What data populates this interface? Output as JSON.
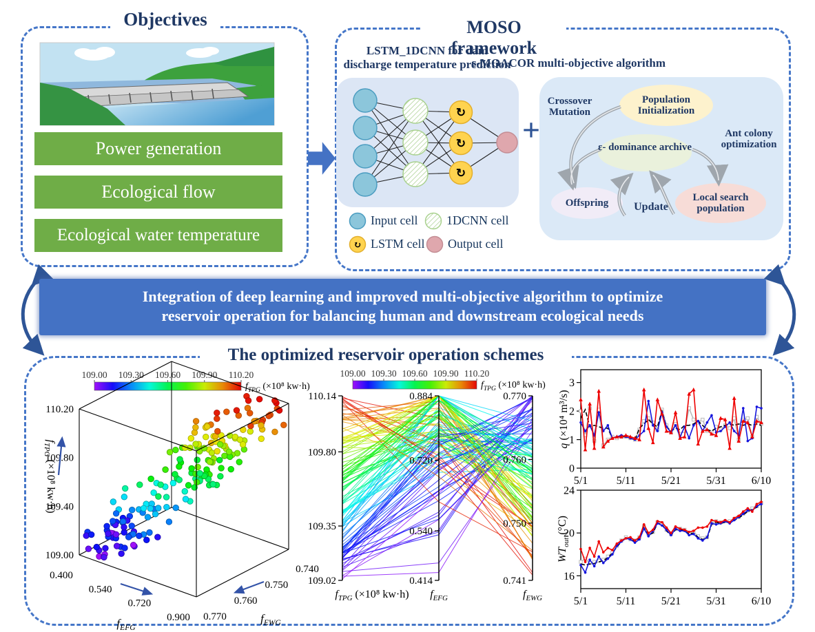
{
  "panels": {
    "objectives": {
      "title": "Objectives",
      "items": [
        "Power generation",
        "Ecological flow",
        "Ecological water temperature"
      ]
    },
    "moso": {
      "title": "MOSO framework",
      "nn": {
        "title_line1": "LSTM_1DCNN for dam",
        "title_line2": "discharge temperature prediction",
        "legend": [
          {
            "icon": "input-cell-icon",
            "label": "Input cell"
          },
          {
            "icon": "cnn-cell-icon",
            "label": "1DCNN cell"
          },
          {
            "icon": "lstm-cell-icon",
            "label": "LSTM cell"
          },
          {
            "icon": "output-cell-icon",
            "label": "Output cell"
          }
        ]
      },
      "plus": "+",
      "alg": {
        "title": "ε-MOACOR multi-objective algorithm",
        "nodes": {
          "pop_init": "Population Initialization",
          "archive": "ε- dominance archive",
          "offspring": "Offspring",
          "local_search": "Local search population"
        },
        "labels": {
          "crossover_l1": "Crossover",
          "crossover_l2": "Mutation",
          "ant_l1": "Ant colony",
          "ant_l2": "optimization",
          "update": "Update"
        }
      }
    },
    "banner": {
      "line1": "Integration of deep learning and improved multi-objective algorithm to optimize",
      "line2": "reservoir operation for balancing human and downstream ecological needs"
    },
    "results": {
      "title": "The optimized reservoir operation schemes"
    }
  },
  "colors": {
    "accent_blue": "#4472c4",
    "navy_text": "#1f3864",
    "green_bar": "#6fad47",
    "panel_blue": "#dce6f5"
  },
  "chart_data": [
    {
      "id": "pareto3d",
      "type": "scatter3d",
      "colorbar": {
        "ticks": [
          "109.00",
          "109.30",
          "109.60",
          "109.90",
          "110.20"
        ],
        "label": {
          "base": "f",
          "sub": "TPG",
          "rest": " (×10⁸ kw·h)"
        }
      },
      "z_axis": {
        "label": {
          "base": "f",
          "sub": "TPG",
          "rest": " (×10⁸ kw·h)"
        },
        "ticks": [
          "110.20",
          "109.80",
          "109.40",
          "109.00"
        ],
        "range": [
          109.0,
          110.2
        ]
      },
      "x_axis": {
        "label": {
          "base": "f",
          "sub": "EFG",
          "rest": ""
        },
        "ticks": [
          "0.400",
          "0.540",
          "0.720",
          "0.900"
        ],
        "range": [
          0.4,
          0.9
        ]
      },
      "y_axis": {
        "label": {
          "base": "f",
          "sub": "EWG",
          "rest": ""
        },
        "ticks": [
          "0.770",
          "0.760",
          "0.750",
          "0.740"
        ],
        "range": [
          0.77,
          0.74
        ]
      },
      "n_points": 195,
      "distribution": "Pareto cloud rising from low fTPG (purple, low fEFG/fEWG corner) to high fTPG (red), rainbow-colored by fTPG"
    },
    {
      "id": "parallel-coords",
      "type": "parallel",
      "colorbar": {
        "ticks": [
          "109.00",
          "109.30",
          "109.60",
          "109.90",
          "110.20"
        ],
        "label": {
          "base": "f",
          "sub": "TPG",
          "rest": " (×10⁸ kw·h)"
        }
      },
      "axes": [
        {
          "label": {
            "base": "f",
            "sub": "TPG",
            "rest": " (×10⁸ kw·h)"
          },
          "ticks": [
            "110.14",
            "109.80",
            "109.35",
            "109.02"
          ]
        },
        {
          "label": {
            "base": "f",
            "sub": "EFG",
            "rest": ""
          },
          "ticks": [
            "0.884",
            "0.720",
            "0.540",
            "0.414"
          ]
        },
        {
          "label": {
            "base": "f",
            "sub": "EWG",
            "rest": ""
          },
          "ticks": [
            "0.770",
            "0.760",
            "0.750",
            "0.741"
          ]
        }
      ],
      "n_lines": 120,
      "distribution": "lines rainbow-colored by fTPG; fEWG inversely related to fTPG so lines converge/cross toward right axis"
    },
    {
      "id": "discharge",
      "type": "line",
      "ylabel": {
        "base": "q",
        "sub": "",
        "rest": " (×10⁴ m³/s)"
      },
      "yticks": [
        0,
        1,
        2,
        3
      ],
      "ylim": [
        0,
        3.45
      ],
      "xticks": [
        "5/1",
        "5/11",
        "5/21",
        "5/31",
        "6/10"
      ],
      "series": [
        {
          "name": "gray",
          "color": "#b9b9b9",
          "marker": "square",
          "dash": false,
          "values": [
            2.0,
            1.15,
            2.1,
            0.95,
            2.05,
            0.8,
            1.0,
            1.1,
            1.05,
            1.1,
            1.1,
            1.05,
            1.0,
            1.35,
            1.65,
            1.75,
            1.6,
            1.35,
            2.05,
            1.5,
            1.25,
            1.55,
            1.2,
            1.3,
            2.1,
            1.7,
            1.6,
            1.7,
            1.3,
            1.25,
            1.45,
            1.35,
            1.5,
            1.4,
            1.75,
            1.0,
            1.7,
            1.75,
            1.1,
            1.8,
            1.55
          ]
        },
        {
          "name": "black-dashed",
          "color": "#000000",
          "marker": null,
          "dash": true,
          "values": [
            1.75,
            2.05,
            1.45,
            1.5,
            1.45,
            1.4,
            1.4,
            1.05,
            1.1,
            1.1,
            1.1,
            1.05,
            1.0,
            1.4,
            1.55,
            1.7,
            1.55,
            1.45,
            2.0,
            1.45,
            1.3,
            1.4,
            1.35,
            1.5,
            1.5,
            1.55,
            1.65,
            1.5,
            1.35,
            1.3,
            1.4,
            1.45,
            1.5,
            1.55,
            1.5,
            1.55,
            1.5,
            1.55,
            1.5,
            1.55,
            1.5
          ]
        },
        {
          "name": "blue",
          "color": "#1515dd",
          "marker": "dot",
          "dash": false,
          "values": [
            1.6,
            1.3,
            1.5,
            1.15,
            1.95,
            1.3,
            1.5,
            1.05,
            1.1,
            1.15,
            1.1,
            1.05,
            1.0,
            1.15,
            1.3,
            2.35,
            1.5,
            1.3,
            1.95,
            1.45,
            1.25,
            1.5,
            1.1,
            1.45,
            1.05,
            1.5,
            1.65,
            1.3,
            1.6,
            1.85,
            1.25,
            1.3,
            1.45,
            1.6,
            1.3,
            1.15,
            2.1,
            0.95,
            1.05,
            2.15,
            2.1
          ]
        },
        {
          "name": "red",
          "color": "#ee0000",
          "marker": "triangle",
          "dash": false,
          "values": [
            2.4,
            0.65,
            2.25,
            0.7,
            2.7,
            0.75,
            0.95,
            1.05,
            1.1,
            1.1,
            1.15,
            1.1,
            1.05,
            1.0,
            2.75,
            1.4,
            0.9,
            2.4,
            1.9,
            1.3,
            1.25,
            1.95,
            1.05,
            1.1,
            2.6,
            2.75,
            0.85,
            1.3,
            1.35,
            1.2,
            1.15,
            1.75,
            1.7,
            0.7,
            2.45,
            0.95,
            1.65,
            1.6,
            1.1,
            1.65,
            1.6
          ]
        }
      ]
    },
    {
      "id": "temperature",
      "type": "line",
      "ylabel": {
        "base": "WT",
        "sub": "out",
        "rest": " (°C)"
      },
      "yticks": [
        16,
        20,
        24
      ],
      "ylim": [
        14.8,
        24
      ],
      "xticks": [
        "5/1",
        "5/11",
        "5/21",
        "5/31",
        "6/10"
      ],
      "series": [
        {
          "name": "gray",
          "color": "#b9b9b9",
          "marker": "square",
          "dash": false,
          "values": [
            17.3,
            17.6,
            17.2,
            17.3,
            17.4,
            17.5,
            17.8,
            18.2,
            18.8,
            19.3,
            19.6,
            19.4,
            19.3,
            19.6,
            20.6,
            19.9,
            20.1,
            21.0,
            20.9,
            20.3,
            19.9,
            20.4,
            20.4,
            20.3,
            20.0,
            20.1,
            19.7,
            19.5,
            19.6,
            20.9,
            21.1,
            21.0,
            21.1,
            21.1,
            21.3,
            21.5,
            21.8,
            22.1,
            22.3,
            22.5,
            22.8
          ]
        },
        {
          "name": "black-dashed",
          "color": "#000000",
          "marker": null,
          "dash": true,
          "values": [
            17.1,
            17.0,
            17.1,
            17.15,
            17.3,
            17.4,
            17.7,
            18.1,
            18.7,
            19.2,
            19.5,
            19.4,
            19.2,
            19.5,
            20.5,
            19.8,
            20.0,
            20.9,
            20.8,
            20.2,
            19.8,
            20.3,
            20.3,
            20.2,
            19.9,
            20.0,
            19.6,
            19.4,
            19.5,
            20.8,
            21.0,
            20.9,
            21.0,
            21.0,
            21.2,
            21.4,
            21.7,
            22.0,
            22.2,
            22.4,
            22.8
          ]
        },
        {
          "name": "blue",
          "color": "#1515dd",
          "marker": "dot",
          "dash": false,
          "values": [
            17.0,
            16.3,
            17.5,
            16.9,
            17.8,
            17.2,
            17.6,
            18.0,
            18.8,
            19.2,
            19.5,
            19.4,
            19.1,
            19.4,
            20.4,
            19.7,
            20.2,
            20.9,
            20.7,
            20.3,
            19.8,
            20.4,
            20.2,
            20.2,
            19.8,
            19.9,
            19.5,
            19.3,
            19.6,
            20.9,
            20.8,
            20.9,
            21.1,
            20.9,
            21.2,
            21.5,
            21.8,
            22.1,
            22.1,
            22.5,
            22.7
          ]
        },
        {
          "name": "red",
          "color": "#ee0000",
          "marker": "dot",
          "dash": false,
          "values": [
            18.5,
            17.3,
            18.6,
            17.8,
            19.2,
            18.2,
            18.6,
            18.4,
            19.0,
            19.3,
            19.5,
            19.6,
            19.3,
            19.6,
            20.8,
            20.0,
            20.3,
            21.1,
            21.0,
            20.5,
            20.0,
            20.6,
            20.4,
            20.3,
            20.1,
            20.2,
            20.5,
            20.5,
            20.6,
            21.2,
            21.1,
            21.0,
            21.2,
            21.0,
            21.4,
            21.6,
            22.0,
            22.3,
            22.0,
            22.7,
            22.9
          ]
        }
      ]
    }
  ]
}
